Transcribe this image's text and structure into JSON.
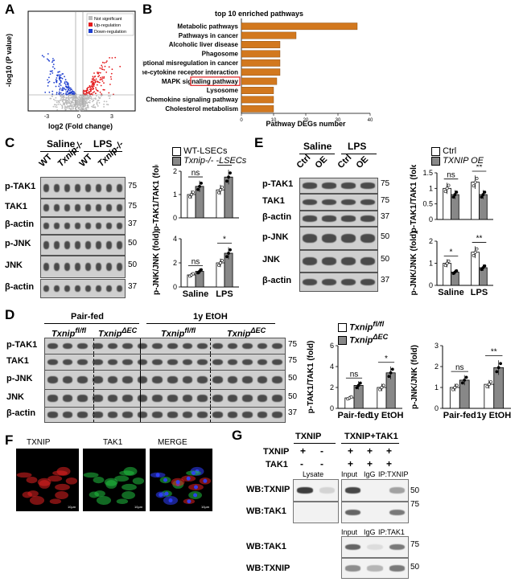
{
  "panels": {
    "A": "A",
    "B": "B",
    "C": "C",
    "D": "D",
    "E": "E",
    "F": "F",
    "G": "G"
  },
  "panelA": {
    "ylabel": "-log10 (P value)",
    "xlabel": "log2 (Fold change)",
    "xticks": [
      "-3",
      "0",
      "3"
    ],
    "yticks": [
      "0",
      "5",
      "10",
      "15",
      "20"
    ],
    "legend": [
      {
        "label": "Not significant",
        "color": "#bbbbbb"
      },
      {
        "label": "Up-regulation",
        "color": "#e41a1c"
      },
      {
        "label": "Down-regulation",
        "color": "#1f3fcf"
      }
    ]
  },
  "panelB": {
    "title": "top 10 enriched pathways",
    "xlabel": "Pathway DEGs number",
    "highlight": "MAPK signaling pathway",
    "bar_color": "#d2781e"
  },
  "chart_data": [
    {
      "type": "bar",
      "title": "top 10 enriched pathways",
      "xlabel": "Pathway DEGs number",
      "categories": [
        "Metabolic pathways",
        "Pathways in cancer",
        "Alcoholic liver disease",
        "Phagosome",
        "Transcriptional misregulation in cancer",
        "Cytokine-cytokine receptor interaction",
        "MAPK signaling pathway",
        "Lysosome",
        "Chemokine signaling pathway",
        "Cholesterol metabolism"
      ],
      "values": [
        36,
        17,
        12,
        12,
        12,
        12,
        11,
        10,
        10,
        10
      ],
      "xlim": [
        0,
        40
      ],
      "xticks": [
        "0",
        "10",
        "20",
        "30",
        "40"
      ]
    },
    {
      "type": "bar",
      "ylabel": "p-TAK1/TAK1 (fold)",
      "categories": [
        "Saline",
        "LPS"
      ],
      "series": [
        {
          "name": "WT-LSECs",
          "values": [
            1.0,
            1.2
          ]
        },
        {
          "name": "Txnip-/- -LSECs",
          "values": [
            1.35,
            1.75
          ]
        }
      ],
      "ylim": [
        0,
        2
      ],
      "yticks": [
        "0",
        "1",
        "2"
      ],
      "sig": [
        "ns",
        "*"
      ]
    },
    {
      "type": "bar",
      "ylabel": "p-JNK/JNK (fold)",
      "categories": [
        "Saline",
        "LPS"
      ],
      "series": [
        {
          "name": "WT-LSECs",
          "values": [
            1.0,
            2.0
          ]
        },
        {
          "name": "Txnip-/- -LSECs",
          "values": [
            1.3,
            2.8
          ]
        }
      ],
      "ylim": [
        0,
        4
      ],
      "yticks": [
        "0",
        "2",
        "4"
      ],
      "sig": [
        "ns",
        "*"
      ]
    },
    {
      "type": "bar",
      "ylabel": "p-TAK1/TAK1 (fold)",
      "categories": [
        "Saline",
        "LPS"
      ],
      "series": [
        {
          "name": "Ctrl",
          "values": [
            1.0,
            1.2
          ]
        },
        {
          "name": "TXNIP OE",
          "values": [
            0.8,
            0.8
          ]
        }
      ],
      "ylim": [
        0,
        1.5
      ],
      "yticks": [
        "0",
        "0.5",
        "1",
        "1.5"
      ],
      "sig": [
        "ns",
        "**"
      ]
    },
    {
      "type": "bar",
      "ylabel": "p-JNK/JNK (fold)",
      "categories": [
        "Saline",
        "LPS"
      ],
      "series": [
        {
          "name": "Ctrl",
          "values": [
            1.0,
            1.5
          ]
        },
        {
          "name": "TXNIP OE",
          "values": [
            0.6,
            0.8
          ]
        }
      ],
      "ylim": [
        0,
        2
      ],
      "yticks": [
        "0",
        "1",
        "2"
      ],
      "sig": [
        "*",
        "**"
      ]
    },
    {
      "type": "bar",
      "ylabel": "p-TAK1/TAK1 (fold)",
      "categories": [
        "Pair-fed",
        "1y EtOH"
      ],
      "series": [
        {
          "name": "Txnip fl/fl",
          "values": [
            1.0,
            2.0
          ]
        },
        {
          "name": "Txnip ΔEC",
          "values": [
            2.2,
            3.4
          ]
        }
      ],
      "ylim": [
        0,
        6
      ],
      "yticks": [
        "0",
        "2",
        "4",
        "6"
      ],
      "sig": [
        "ns",
        "*"
      ]
    },
    {
      "type": "bar",
      "ylabel": "p-JNK/JNK (fold)",
      "categories": [
        "Pair-fed",
        "1y EtOH"
      ],
      "series": [
        {
          "name": "Txnip fl/fl",
          "values": [
            1.0,
            1.15
          ]
        },
        {
          "name": "Txnip ΔEC",
          "values": [
            1.35,
            1.95
          ]
        }
      ],
      "ylim": [
        0,
        3
      ],
      "yticks": [
        "0",
        "1",
        "2",
        "3"
      ],
      "sig": [
        "ns",
        "**"
      ]
    }
  ],
  "panelC": {
    "saline": "Saline",
    "lps": "LPS",
    "lanes": [
      "WT",
      "Txnip-/-",
      "WT",
      "Txnip-/-"
    ],
    "rows": [
      "p-TAK1",
      "TAK1",
      "β-actin",
      "p-JNK",
      "JNK",
      "β-actin"
    ],
    "mw": [
      "75",
      "75",
      "37",
      "50",
      "50",
      "37"
    ],
    "legend": [
      "WT-LSECs",
      "Txnip-/- -LSECs"
    ],
    "xcats": [
      "Saline",
      "LPS"
    ]
  },
  "panelE": {
    "saline": "Saline",
    "lps": "LPS",
    "lanes": [
      "Ctrl",
      "OE",
      "Ctrl",
      "OE"
    ],
    "rows": [
      "p-TAK1",
      "TAK1",
      "β-actin",
      "p-JNK",
      "JNK",
      "β-actin"
    ],
    "mw": [
      "75",
      "75",
      "37",
      "50",
      "50",
      "37"
    ],
    "legend": [
      "Ctrl",
      "TXNIP OE"
    ],
    "xcats": [
      "Saline",
      "LPS"
    ]
  },
  "panelD": {
    "pairfed": "Pair-fed",
    "etoh": "1y EtOH",
    "geno1": "Txnip",
    "geno1sup": "fl/fl",
    "geno2": "Txnip",
    "geno2sup": "ΔEC",
    "rows": [
      "p-TAK1",
      "TAK1",
      "p-JNK",
      "JNK",
      "β-actin"
    ],
    "mw": [
      "75",
      "75",
      "50",
      "50",
      "37"
    ],
    "xcats": [
      "Pair-fed",
      "1y EtOH"
    ]
  },
  "panelF": {
    "labels": [
      "TXNIP",
      "TAK1",
      "MERGE"
    ],
    "scale": "10μm"
  },
  "panelG": {
    "txnip_head": "TXNIP",
    "both_head": "TXNIP+TAK1",
    "row_txnip": "TXNIP",
    "row_tak1": "TAK1",
    "signs_txnip": [
      "+",
      "-",
      "+",
      "+",
      "+"
    ],
    "signs_tak1": [
      "-",
      "-",
      "+",
      "+",
      "+"
    ],
    "lysate": "Lysate",
    "input": "Input",
    "igg": "IgG",
    "ip_txnip": "IP:TXNIP",
    "ip_tak1": "IP:TAK1",
    "wb": [
      "WB:TXNIP",
      "WB:TAK1",
      "WB:TAK1",
      "WB:TXNIP"
    ],
    "mw": [
      "50",
      "75",
      "75",
      "50"
    ]
  }
}
